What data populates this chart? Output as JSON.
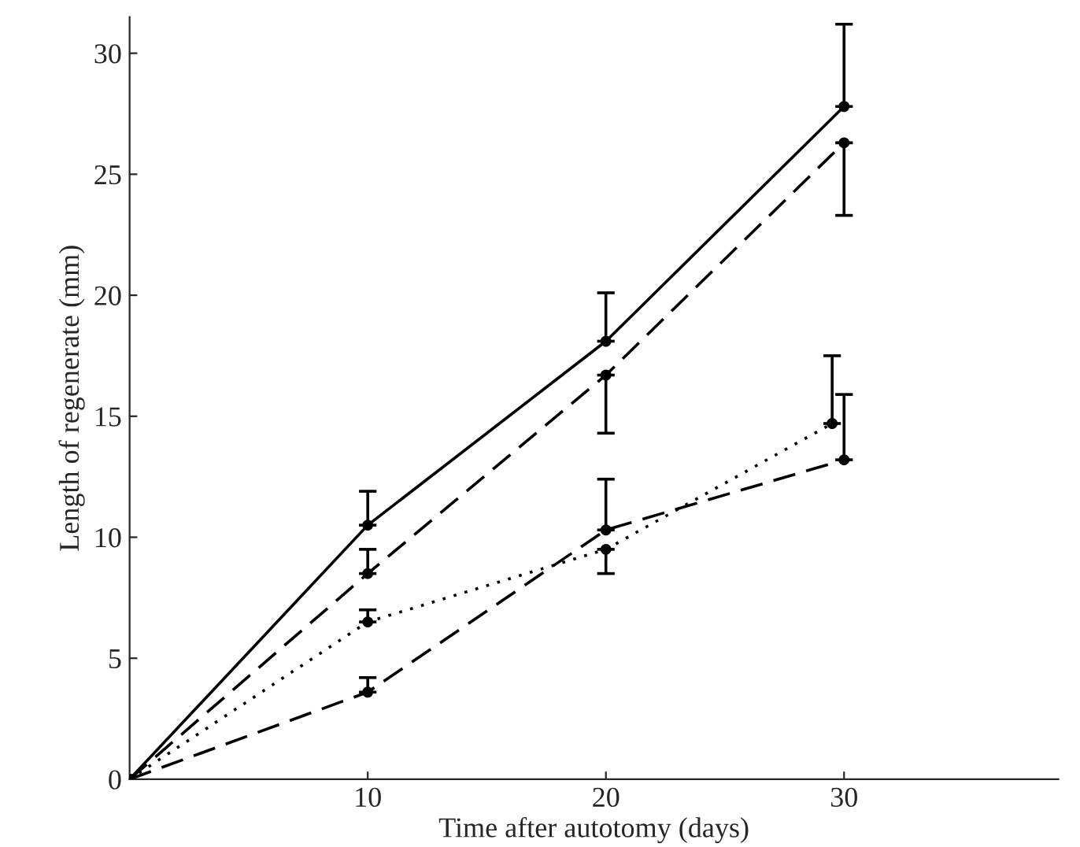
{
  "chart_data": {
    "type": "line",
    "xlabel": "Time after autotomy (days)",
    "ylabel": "Length of regenerate (mm)",
    "xlim": [
      0,
      39
    ],
    "xticks": [
      10,
      20,
      30
    ],
    "ylim": [
      0,
      31.5
    ],
    "yticks": [
      0,
      5,
      10,
      15,
      20,
      25,
      30
    ],
    "grid": false,
    "legend": false,
    "marker": "circle",
    "series": [
      {
        "color": "#000000",
        "line_style": "solid",
        "x": [
          0,
          10,
          20,
          30
        ],
        "values": [
          0,
          10.5,
          18.1,
          27.8
        ],
        "errors": [
          null,
          [
            10.5,
            11.9
          ],
          [
            18.1,
            20.1
          ],
          [
            27.8,
            31.2
          ]
        ]
      },
      {
        "color": "#000000",
        "line_style": "dashed",
        "x": [
          0,
          10,
          20,
          30
        ],
        "values": [
          0,
          8.5,
          16.7,
          26.3
        ],
        "errors": [
          null,
          [
            8.5,
            9.5
          ],
          [
            14.3,
            16.7
          ],
          [
            23.3,
            26.3
          ]
        ]
      },
      {
        "color": "#000000",
        "line_style": "dotted",
        "x": [
          0,
          10,
          20,
          29.5
        ],
        "values": [
          0,
          6.5,
          9.5,
          14.7
        ],
        "errors": [
          null,
          [
            6.5,
            7.0
          ],
          [
            8.5,
            9.5
          ],
          [
            14.7,
            17.5
          ]
        ]
      },
      {
        "color": "#000000",
        "line_style": "dashed",
        "x": [
          0,
          10,
          20,
          30
        ],
        "values": [
          0,
          3.6,
          10.3,
          13.2
        ],
        "errors": [
          null,
          [
            3.6,
            4.2
          ],
          [
            10.3,
            12.4
          ],
          [
            13.2,
            15.9
          ]
        ]
      }
    ]
  }
}
